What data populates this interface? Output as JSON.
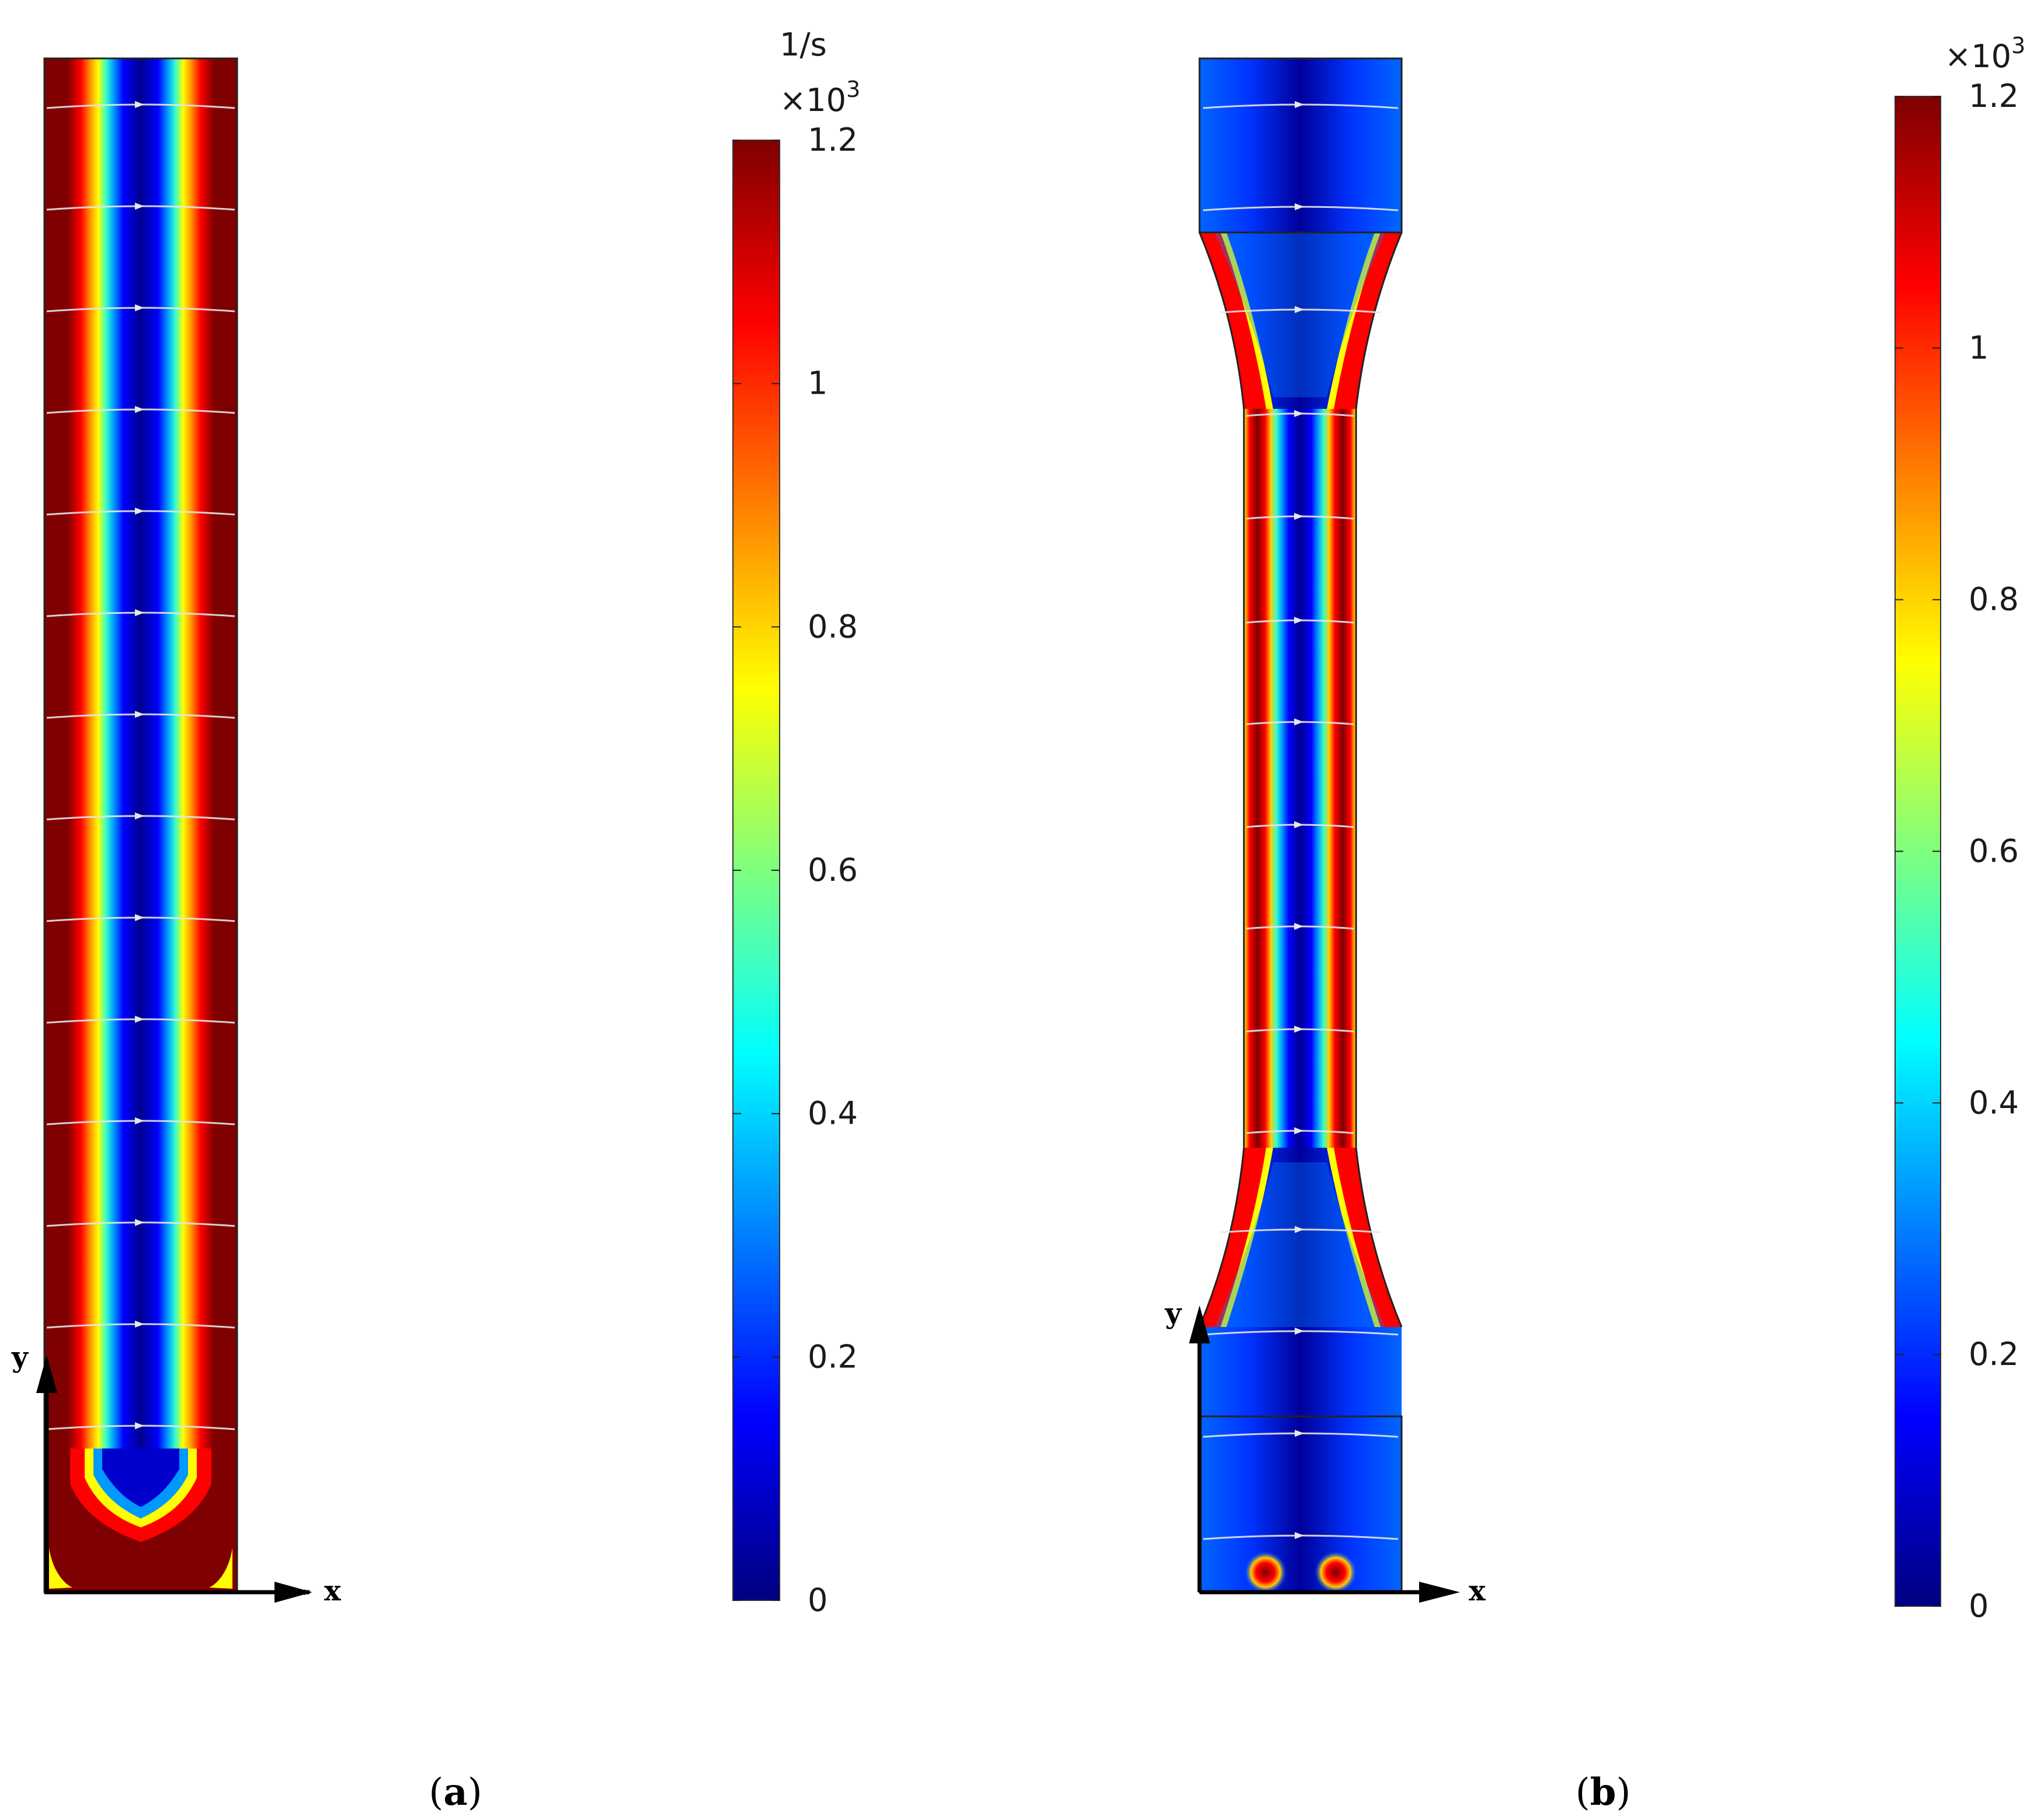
{
  "colormap": [
    "#00007f",
    "#0000ff",
    "#007fff",
    "#00ffff",
    "#7fff7f",
    "#ffff00",
    "#ff7f00",
    "#ff0000",
    "#7f0000"
  ],
  "flow_arrow_color": "#e6e6e6",
  "panels": [
    {
      "id": "a",
      "caption_open": "(",
      "caption_letter": "a",
      "caption_close": ")",
      "axis_x_label": "x",
      "axis_y_label": "y",
      "colorbar": {
        "unit": "1/s",
        "multiplier_base": "×10",
        "multiplier_exp": "3",
        "min": 0,
        "max": 1.2,
        "ticks": [
          "1.2",
          "1",
          "0.8",
          "0.6",
          "0.4",
          "0.2",
          "0"
        ]
      }
    },
    {
      "id": "b",
      "caption_open": "(",
      "caption_letter": "b",
      "caption_close": ")",
      "axis_x_label": "x",
      "axis_y_label": "y",
      "colorbar": {
        "multiplier_base": "×10",
        "multiplier_exp": "3",
        "min": 0,
        "max": 1.2,
        "ticks": [
          "1.2",
          "1",
          "0.8",
          "0.6",
          "0.4",
          "0.2",
          "0"
        ]
      }
    }
  ]
}
